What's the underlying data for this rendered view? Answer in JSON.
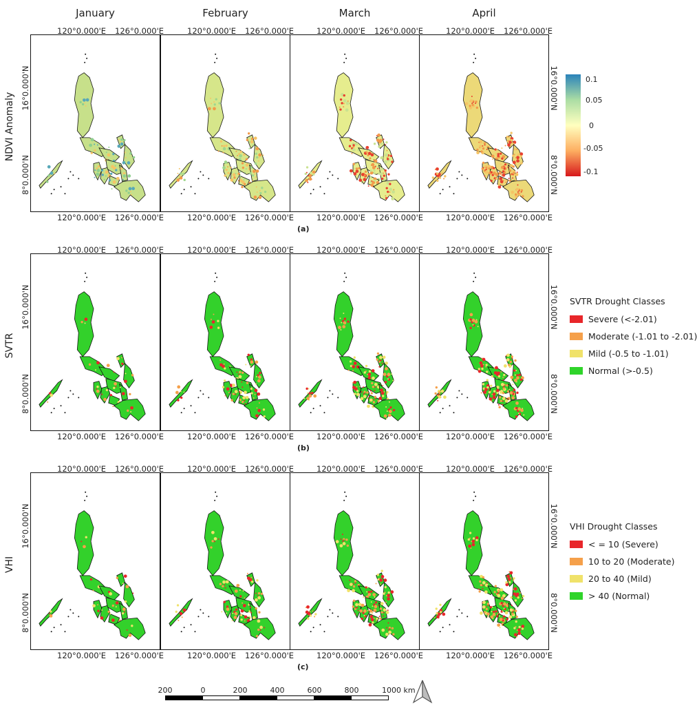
{
  "months": [
    "January",
    "February",
    "March",
    "April"
  ],
  "lon_labels": {
    "left": "120°0.000'E",
    "right": "126°0.000'E"
  },
  "lat_labels": {
    "north": "16°0.000'N",
    "south": "8°0.000'N"
  },
  "rows": [
    {
      "id": "ndvi",
      "label": "NDVI Anomaly",
      "panel": "(a)"
    },
    {
      "id": "svtr",
      "label": "SVTR",
      "panel": "(b)"
    },
    {
      "id": "vhi",
      "label": "VHI",
      "panel": "(c)"
    }
  ],
  "ndvi_colorbar": {
    "ticks": [
      "0.1",
      "0.05",
      "0",
      "-0.05",
      "-0.1"
    ],
    "colors": [
      "#2b83ba",
      "#abdda4",
      "#ffffbf",
      "#fdae61",
      "#d7191c"
    ]
  },
  "svtr_legend": {
    "title": "SVTR Drought Classes",
    "items": [
      {
        "label": "Severe (<-2.01)",
        "color": "#e8262a"
      },
      {
        "label": "Moderate (-1.01 to -2.01)",
        "color": "#f5a04a"
      },
      {
        "label": "Mild (-0.5 to -1.01)",
        "color": "#f0e26a"
      },
      {
        "label": "Normal (>-0.5)",
        "color": "#2fd42a"
      }
    ]
  },
  "vhi_legend": {
    "title": "VHI Drought Classes",
    "items": [
      {
        "label": "< = 10 (Severe)",
        "color": "#e8262a"
      },
      {
        "label": "10 to 20 (Moderate)",
        "color": "#f5a04a"
      },
      {
        "label": "20 to 40 (Mild)",
        "color": "#f0e26a"
      },
      {
        "label": "> 40 (Normal)",
        "color": "#2fd42a"
      }
    ]
  },
  "scalebar": {
    "labels": [
      "200",
      "0",
      "200",
      "400",
      "600",
      "800",
      "1000 km"
    ]
  }
}
